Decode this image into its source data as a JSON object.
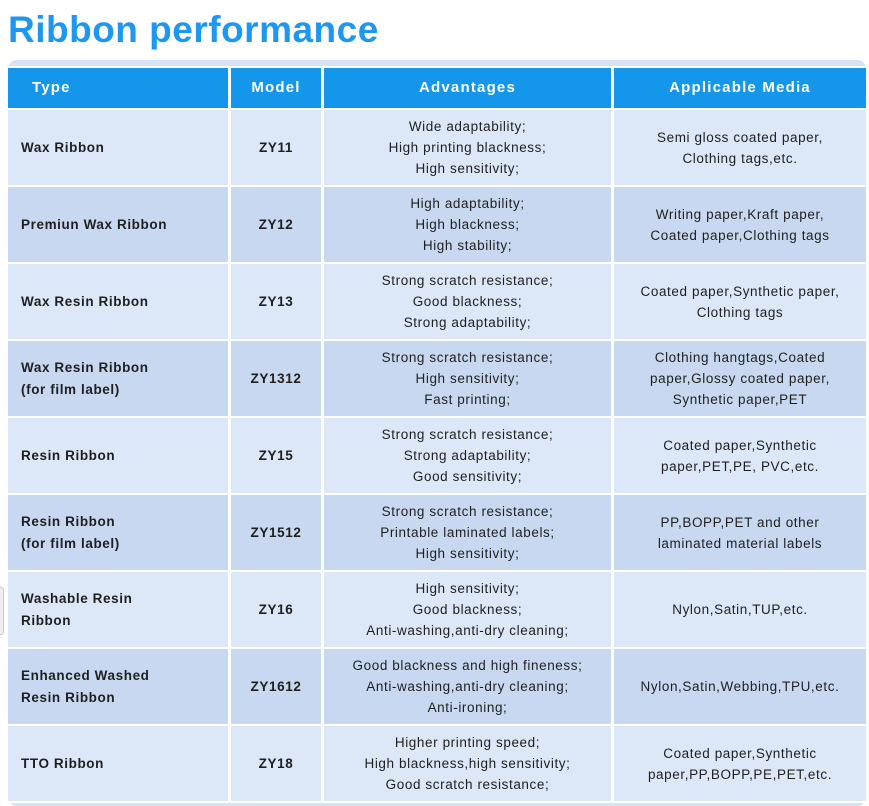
{
  "page": {
    "title": "Ribbon performance"
  },
  "colors": {
    "accent_blue": "#1496eb",
    "title_blue": "#1e97f0",
    "row_dark": "#c8d8f0",
    "row_light": "#dce7f8",
    "card_bg": "#d7e3f4"
  },
  "table": {
    "columns": [
      {
        "label": "Type"
      },
      {
        "label": "Model"
      },
      {
        "label": "Advantages"
      },
      {
        "label": "Applicable Media"
      }
    ],
    "rows": [
      {
        "type": "Wax Ribbon",
        "model": "ZY11",
        "advantages": "Wide adaptability;\nHigh printing blackness;\nHigh sensitivity;",
        "media": "Semi gloss coated paper,\nClothing tags,etc."
      },
      {
        "type": "Premiun Wax Ribbon",
        "model": "ZY12",
        "advantages": "High adaptability;\nHigh blackness;\nHigh stability;",
        "media": "Writing paper,Kraft paper,\nCoated paper,Clothing tags"
      },
      {
        "type": "Wax Resin Ribbon",
        "model": "ZY13",
        "advantages": "Strong scratch resistance;\nGood blackness;\nStrong adaptability;",
        "media": "Coated paper,Synthetic paper,\nClothing tags"
      },
      {
        "type": "Wax Resin Ribbon\n(for film label)",
        "model": "ZY1312",
        "advantages": "Strong scratch resistance;\nHigh sensitivity;\nFast printing;",
        "media": "Clothing hangtags,Coated\npaper,Glossy coated paper,\nSynthetic paper,PET"
      },
      {
        "type": "Resin Ribbon",
        "model": "ZY15",
        "advantages": "Strong scratch resistance;\nStrong adaptability;\nGood sensitivity;",
        "media": "Coated paper,Synthetic\npaper,PET,PE, PVC,etc."
      },
      {
        "type": "Resin Ribbon\n(for film label)",
        "model": "ZY1512",
        "advantages": "Strong scratch resistance;\nPrintable laminated labels;\nHigh sensitivity;",
        "media": "PP,BOPP,PET and other\nlaminated material labels"
      },
      {
        "type": "Washable Resin\nRibbon",
        "model": "ZY16",
        "advantages": "High sensitivity;\nGood blackness;\nAnti-washing,anti-dry cleaning;",
        "media": "Nylon,Satin,TUP,etc."
      },
      {
        "type": "Enhanced Washed\nResin Ribbon",
        "model": "ZY1612",
        "advantages": "Good blackness and high fineness;\nAnti-washing,anti-dry cleaning;\nAnti-ironing;",
        "media": "Nylon,Satin,Webbing,TPU,etc."
      },
      {
        "type": "TTO Ribbon",
        "model": "ZY18",
        "advantages": "Higher printing speed;\nHigh blackness,high sensitivity;\nGood scratch resistance;",
        "media": "Coated paper,Synthetic\npaper,PP,BOPP,PE,PET,etc."
      }
    ]
  }
}
